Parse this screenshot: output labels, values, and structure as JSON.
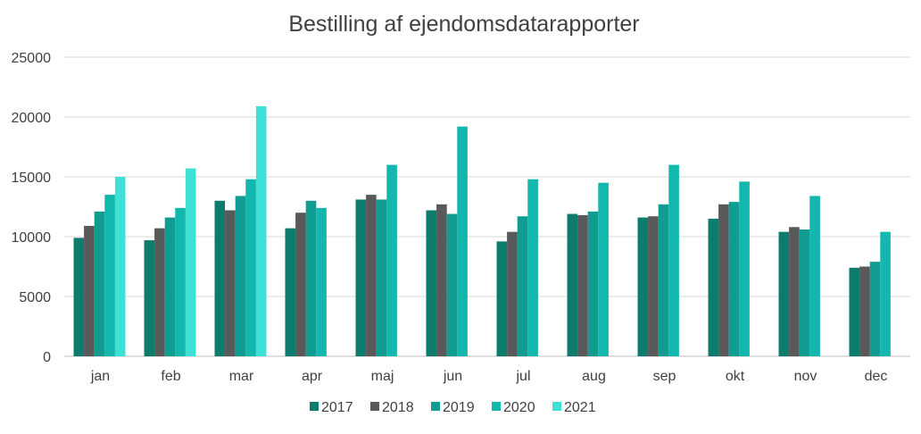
{
  "chart_data": {
    "type": "bar",
    "title": "Bestilling af ejendomsdatarapporter",
    "xlabel": "",
    "ylabel": "",
    "ylim": [
      0,
      25000
    ],
    "yticks": [
      0,
      5000,
      10000,
      15000,
      20000,
      25000
    ],
    "grid": true,
    "legend_position": "bottom",
    "categories": [
      "jan",
      "feb",
      "mar",
      "apr",
      "maj",
      "jun",
      "jul",
      "aug",
      "sep",
      "okt",
      "nov",
      "dec"
    ],
    "series": [
      {
        "name": "2017",
        "color": "#0e7c6d",
        "values": [
          9900,
          9700,
          13000,
          10700,
          13100,
          12200,
          9600,
          11900,
          11600,
          11500,
          10400,
          7400
        ]
      },
      {
        "name": "2018",
        "color": "#595959",
        "values": [
          10900,
          10700,
          12200,
          12000,
          13500,
          12700,
          10400,
          11800,
          11700,
          12700,
          10800,
          7500
        ]
      },
      {
        "name": "2019",
        "color": "#109c90",
        "values": [
          12100,
          11600,
          13400,
          13000,
          13100,
          11900,
          11700,
          12100,
          12700,
          12900,
          10600,
          7900
        ]
      },
      {
        "name": "2020",
        "color": "#12b7ae",
        "values": [
          13500,
          12400,
          14800,
          12400,
          16000,
          19200,
          14800,
          14500,
          16000,
          14600,
          13400,
          10400
        ]
      },
      {
        "name": "2021",
        "color": "#3fe1d7",
        "values": [
          15000,
          15700,
          20900,
          null,
          null,
          null,
          null,
          null,
          null,
          null,
          null,
          null
        ]
      }
    ]
  }
}
